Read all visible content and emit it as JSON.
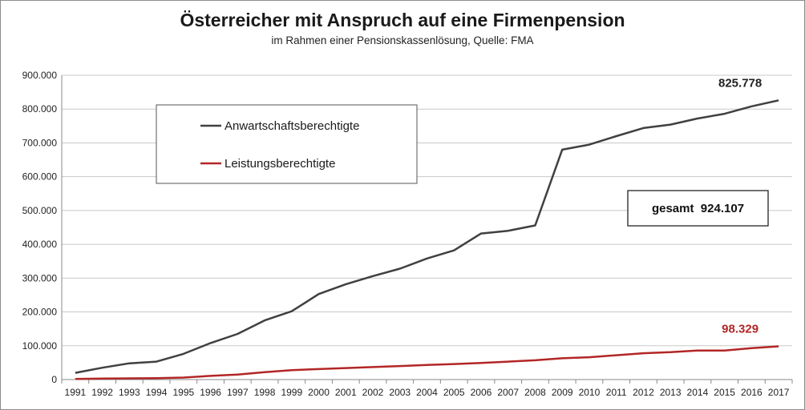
{
  "chart_data": {
    "type": "line",
    "title": "Österreicher mit Anspruch auf eine Firmenpension",
    "subtitle": "im Rahmen einer Pensionskassenlösung, Quelle: FMA",
    "x": [
      "1991",
      "1992",
      "1993",
      "1994",
      "1995",
      "1996",
      "1997",
      "1998",
      "1999",
      "2000",
      "2001",
      "2002",
      "2003",
      "2004",
      "2005",
      "2006",
      "2007",
      "2008",
      "2009",
      "2010",
      "2011",
      "2012",
      "2013",
      "2014",
      "2015",
      "2016",
      "2017"
    ],
    "ylim": [
      0,
      900000
    ],
    "yticks": [
      "0",
      "100.000",
      "200.000",
      "300.000",
      "400.000",
      "500.000",
      "600.000",
      "700.000",
      "800.000",
      "900.000"
    ],
    "ytick_values": [
      0,
      100000,
      200000,
      300000,
      400000,
      500000,
      600000,
      700000,
      800000,
      900000
    ],
    "grid": true,
    "legend_position": "top-left",
    "series": [
      {
        "name": "Anwartschaftsberechtigte",
        "color": "#404040",
        "values": [
          20000,
          35000,
          48000,
          53000,
          76000,
          108000,
          135000,
          175000,
          202000,
          253000,
          282000,
          306000,
          328000,
          358000,
          382000,
          432000,
          440000,
          456000,
          680000,
          695000,
          720000,
          744000,
          754000,
          772000,
          786000,
          808000,
          825778
        ],
        "end_label": "825.778"
      },
      {
        "name": "Leistungsberechtigte",
        "color": "#b32626",
        "values": [
          2000,
          3000,
          3500,
          4000,
          6000,
          11000,
          15000,
          22000,
          28000,
          31000,
          34000,
          37000,
          40000,
          43000,
          46000,
          49000,
          53000,
          57000,
          63000,
          66000,
          72000,
          78000,
          81000,
          86000,
          86000,
          93000,
          98329
        ],
        "end_label": "98.329"
      }
    ],
    "total_label": "gesamt  924.107"
  }
}
